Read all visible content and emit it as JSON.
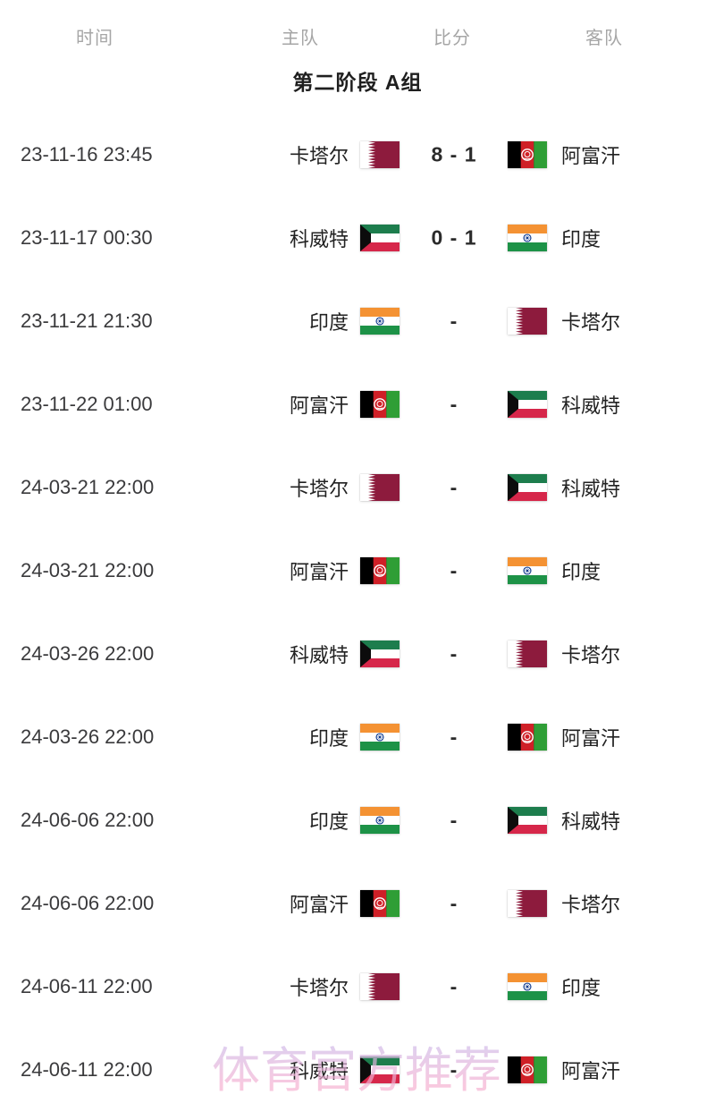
{
  "table": {
    "headers": {
      "time": "时间",
      "home": "主队",
      "score": "比分",
      "away": "客队"
    },
    "section_title": "第二阶段 A组",
    "matches": [
      {
        "time": "23-11-16 23:45",
        "home": "卡塔尔",
        "home_flag": "qatar-flag",
        "score": "8 - 1",
        "away": "阿富汗",
        "away_flag": "afghanistan-flag"
      },
      {
        "time": "23-11-17 00:30",
        "home": "科威特",
        "home_flag": "kuwait-flag",
        "score": "0 - 1",
        "away": "印度",
        "away_flag": "india-flag"
      },
      {
        "time": "23-11-21 21:30",
        "home": "印度",
        "home_flag": "india-flag",
        "score": "-",
        "away": "卡塔尔",
        "away_flag": "qatar-flag"
      },
      {
        "time": "23-11-22 01:00",
        "home": "阿富汗",
        "home_flag": "afghanistan-flag",
        "score": "-",
        "away": "科威特",
        "away_flag": "kuwait-flag"
      },
      {
        "time": "24-03-21 22:00",
        "home": "卡塔尔",
        "home_flag": "qatar-flag",
        "score": "-",
        "away": "科威特",
        "away_flag": "kuwait-flag"
      },
      {
        "time": "24-03-21 22:00",
        "home": "阿富汗",
        "home_flag": "afghanistan-flag",
        "score": "-",
        "away": "印度",
        "away_flag": "india-flag"
      },
      {
        "time": "24-03-26 22:00",
        "home": "科威特",
        "home_flag": "kuwait-flag",
        "score": "-",
        "away": "卡塔尔",
        "away_flag": "qatar-flag"
      },
      {
        "time": "24-03-26 22:00",
        "home": "印度",
        "home_flag": "india-flag",
        "score": "-",
        "away": "阿富汗",
        "away_flag": "afghanistan-flag"
      },
      {
        "time": "24-06-06 22:00",
        "home": "印度",
        "home_flag": "india-flag",
        "score": "-",
        "away": "科威特",
        "away_flag": "kuwait-flag"
      },
      {
        "time": "24-06-06 22:00",
        "home": "阿富汗",
        "home_flag": "afghanistan-flag",
        "score": "-",
        "away": "卡塔尔",
        "away_flag": "qatar-flag"
      },
      {
        "time": "24-06-11 22:00",
        "home": "卡塔尔",
        "home_flag": "qatar-flag",
        "score": "-",
        "away": "印度",
        "away_flag": "india-flag"
      },
      {
        "time": "24-06-11 22:00",
        "home": "科威特",
        "home_flag": "kuwait-flag",
        "score": "-",
        "away": "阿富汗",
        "away_flag": "afghanistan-flag"
      }
    ]
  },
  "watermark": {
    "text": "体育官方推荐"
  },
  "colors": {
    "qatar_maroon": "#8d1b3d",
    "afghan_black": "#000000",
    "afghan_red": "#cf2027",
    "afghan_green": "#2f9e36",
    "kuwait_green": "#1d7d4d",
    "kuwait_red": "#d6274a",
    "kuwait_black": "#0c0c0c",
    "india_saffron": "#f49233",
    "india_green": "#1d9247",
    "india_navy": "#123d8f",
    "header_gray": "#a6a6a6",
    "text_dark": "#2b2b2b"
  }
}
